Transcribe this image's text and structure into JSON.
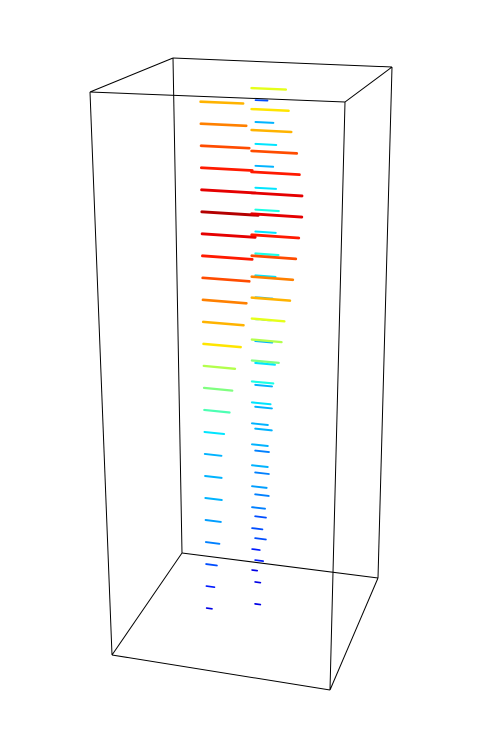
{
  "chart_data": {
    "type": "quiver3d",
    "colormap": "jet",
    "clim": [
      0,
      1
    ],
    "xlim": [
      0,
      1
    ],
    "ylim": [
      0,
      1
    ],
    "zlim": [
      0,
      1
    ],
    "points": {
      "x": [
        0.35,
        0.55,
        0.45
      ],
      "y": [
        0.3,
        0.4,
        0.7
      ]
    },
    "z": [
      0.97,
      0.93,
      0.89,
      0.85,
      0.81,
      0.77,
      0.73,
      0.69,
      0.65,
      0.61,
      0.57,
      0.53,
      0.49,
      0.45,
      0.41,
      0.37,
      0.33,
      0.29,
      0.25,
      0.21,
      0.17,
      0.13,
      0.09,
      0.05
    ],
    "u": [
      [
        0.7,
        0.2,
        0.6
      ],
      [
        0.75,
        0.3,
        0.65
      ],
      [
        0.8,
        0.35,
        0.7
      ],
      [
        0.85,
        0.3,
        0.8
      ],
      [
        0.9,
        0.35,
        0.85
      ],
      [
        0.95,
        0.4,
        0.9
      ],
      [
        0.9,
        0.35,
        0.9
      ],
      [
        0.85,
        0.4,
        0.85
      ],
      [
        0.8,
        0.35,
        0.8
      ],
      [
        0.75,
        0.3,
        0.75
      ],
      [
        0.7,
        0.3,
        0.7
      ],
      [
        0.65,
        0.3,
        0.6
      ],
      [
        0.55,
        0.35,
        0.55
      ],
      [
        0.5,
        0.3,
        0.5
      ],
      [
        0.45,
        0.3,
        0.4
      ],
      [
        0.35,
        0.3,
        0.35
      ],
      [
        0.3,
        0.25,
        0.3
      ],
      [
        0.3,
        0.25,
        0.3
      ],
      [
        0.3,
        0.25,
        0.3
      ],
      [
        0.28,
        0.2,
        0.28
      ],
      [
        0.25,
        0.2,
        0.25
      ],
      [
        0.2,
        0.15,
        0.2
      ],
      [
        0.15,
        0.1,
        0.15
      ],
      [
        0.1,
        0.1,
        0.1
      ]
    ]
  }
}
